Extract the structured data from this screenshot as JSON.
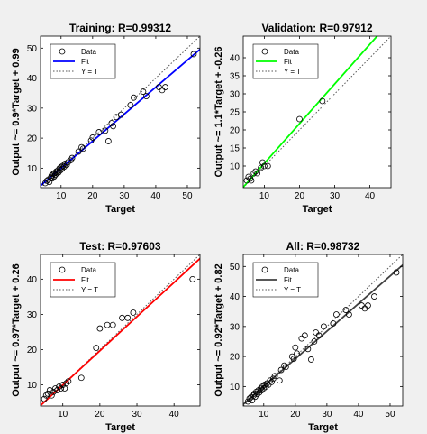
{
  "chart_data": [
    {
      "type": "scatter",
      "title": "Training: R=0.99312",
      "xlabel": "Target",
      "ylabel": "Output ~= 0.9*Target + 0.99",
      "xlim": [
        3.5,
        54
      ],
      "ylim": [
        3.5,
        54
      ],
      "xticks": [
        10,
        20,
        30,
        40,
        50
      ],
      "yticks": [
        10,
        20,
        30,
        40,
        50
      ],
      "fit": {
        "slope": 0.9,
        "intercept": 0.99,
        "color": "#0000ff"
      },
      "identity_line": true,
      "legend": {
        "position": "top-left",
        "entries": [
          "Data",
          "Fit",
          "Y = T"
        ]
      },
      "points": [
        [
          5,
          5
        ],
        [
          5.5,
          5.8
        ],
        [
          6,
          6.2
        ],
        [
          6.3,
          5.4
        ],
        [
          6.8,
          6.9
        ],
        [
          7,
          7.5
        ],
        [
          7.2,
          6.6
        ],
        [
          7.5,
          8
        ],
        [
          7.8,
          7.2
        ],
        [
          8,
          8.4
        ],
        [
          8.2,
          7.8
        ],
        [
          8.5,
          8.9
        ],
        [
          8.7,
          8.3
        ],
        [
          9,
          9.2
        ],
        [
          9.2,
          8.6
        ],
        [
          9.5,
          9.9
        ],
        [
          9.8,
          9.3
        ],
        [
          10,
          10.4
        ],
        [
          10.3,
          9.8
        ],
        [
          10.6,
          10.8
        ],
        [
          11,
          10.5
        ],
        [
          11.3,
          11.5
        ],
        [
          11.8,
          11.1
        ],
        [
          12.2,
          12
        ],
        [
          13,
          12.6
        ],
        [
          13.5,
          13.4
        ],
        [
          15.5,
          15.5
        ],
        [
          16.5,
          17
        ],
        [
          17,
          16.5
        ],
        [
          19.5,
          19.2
        ],
        [
          20,
          20.2
        ],
        [
          22,
          22
        ],
        [
          24,
          22.5
        ],
        [
          25,
          19
        ],
        [
          26,
          25
        ],
        [
          26.5,
          24
        ],
        [
          27.5,
          27
        ],
        [
          29,
          27.8
        ],
        [
          32,
          31
        ],
        [
          33,
          33.5
        ],
        [
          36,
          35.5
        ],
        [
          37,
          34
        ],
        [
          41,
          37
        ],
        [
          42,
          36
        ],
        [
          43,
          37
        ],
        [
          52,
          48
        ]
      ]
    },
    {
      "type": "scatter",
      "title": "Validation: R=0.97912",
      "xlabel": "Target",
      "ylabel": "Output ~= 1.1*Target + -0.26",
      "xlim": [
        4,
        46
      ],
      "ylim": [
        4,
        46
      ],
      "xticks": [
        10,
        20,
        30,
        40
      ],
      "yticks": [
        10,
        15,
        20,
        25,
        30,
        35,
        40
      ],
      "ytick_labels": [
        "10",
        "15",
        "20",
        "25",
        "30",
        "35",
        "40"
      ],
      "fit": {
        "slope": 1.1,
        "intercept": -0.26,
        "color": "#00ff00"
      },
      "identity_line": true,
      "legend": {
        "position": "top-left",
        "entries": [
          "Data",
          "Fit",
          "Y = T"
        ]
      },
      "points": [
        [
          5,
          6
        ],
        [
          5.5,
          7
        ],
        [
          6,
          6.5
        ],
        [
          6.3,
          6
        ],
        [
          7,
          8
        ],
        [
          7.5,
          8.5
        ],
        [
          8,
          8
        ],
        [
          9,
          9.5
        ],
        [
          9.5,
          11
        ],
        [
          10,
          10
        ],
        [
          11,
          10
        ],
        [
          20,
          23
        ],
        [
          26.5,
          28
        ]
      ]
    },
    {
      "type": "scatter",
      "title": "Test: R=0.97603",
      "xlabel": "Target",
      "ylabel": "Output ~= 0.97*Target + 0.26",
      "xlim": [
        4,
        47
      ],
      "ylim": [
        4,
        47
      ],
      "xticks": [
        10,
        20,
        30,
        40
      ],
      "yticks": [
        10,
        20,
        30,
        40
      ],
      "fit": {
        "slope": 0.97,
        "intercept": 0.26,
        "color": "#ff0000"
      },
      "identity_line": true,
      "legend": {
        "position": "top-left",
        "entries": [
          "Data",
          "Fit",
          "Y = T"
        ]
      },
      "points": [
        [
          5,
          6
        ],
        [
          5.5,
          7
        ],
        [
          6,
          7.5
        ],
        [
          6.5,
          8.5
        ],
        [
          7,
          7
        ],
        [
          7.5,
          8
        ],
        [
          8,
          9
        ],
        [
          8.5,
          8.5
        ],
        [
          9,
          9.5
        ],
        [
          9.5,
          9
        ],
        [
          10,
          10
        ],
        [
          10.5,
          9
        ],
        [
          11,
          10.5
        ],
        [
          11.5,
          11
        ],
        [
          15,
          12
        ],
        [
          19,
          20.5
        ],
        [
          20,
          26
        ],
        [
          22,
          27
        ],
        [
          23.5,
          27
        ],
        [
          26,
          29
        ],
        [
          27.5,
          29
        ],
        [
          29,
          30.5
        ],
        [
          45,
          40
        ]
      ]
    },
    {
      "type": "scatter",
      "title": "All: R=0.98732",
      "xlabel": "Target",
      "ylabel": "Output ~= 0.92*Target + 0.82",
      "xlim": [
        3.5,
        54
      ],
      "ylim": [
        3.5,
        54
      ],
      "xticks": [
        10,
        20,
        30,
        40,
        50
      ],
      "yticks": [
        10,
        20,
        30,
        40,
        50
      ],
      "fit": {
        "slope": 0.92,
        "intercept": 0.82,
        "color": "#404040"
      },
      "identity_line": true,
      "legend": {
        "position": "top-left",
        "entries": [
          "Data",
          "Fit",
          "Y = T"
        ]
      },
      "points": [
        [
          5,
          5
        ],
        [
          5.5,
          6
        ],
        [
          6,
          6.5
        ],
        [
          6.3,
          5.4
        ],
        [
          6.8,
          7
        ],
        [
          7,
          7.6
        ],
        [
          7.3,
          6.6
        ],
        [
          7.6,
          8.2
        ],
        [
          8,
          7.5
        ],
        [
          8.3,
          8.7
        ],
        [
          8.6,
          8
        ],
        [
          9,
          9.3
        ],
        [
          9.3,
          8.7
        ],
        [
          9.6,
          10
        ],
        [
          10,
          9.4
        ],
        [
          10.3,
          10.6
        ],
        [
          10.7,
          10
        ],
        [
          11,
          11
        ],
        [
          11.5,
          10.6
        ],
        [
          12,
          12
        ],
        [
          12.5,
          11.5
        ],
        [
          13,
          12.6
        ],
        [
          13.5,
          13.5
        ],
        [
          15,
          12
        ],
        [
          15.5,
          15.5
        ],
        [
          16.5,
          17
        ],
        [
          17,
          16.5
        ],
        [
          19,
          20
        ],
        [
          19.5,
          19.2
        ],
        [
          20,
          23
        ],
        [
          20.5,
          21
        ],
        [
          22,
          26
        ],
        [
          23,
          27
        ],
        [
          24,
          22.5
        ],
        [
          25,
          19
        ],
        [
          26,
          25
        ],
        [
          26.5,
          28
        ],
        [
          27.5,
          27
        ],
        [
          29,
          30
        ],
        [
          32,
          31
        ],
        [
          33,
          34
        ],
        [
          36,
          35.5
        ],
        [
          37,
          34
        ],
        [
          41,
          37
        ],
        [
          42,
          36
        ],
        [
          43,
          37
        ],
        [
          45,
          40
        ],
        [
          52,
          48
        ]
      ]
    }
  ]
}
